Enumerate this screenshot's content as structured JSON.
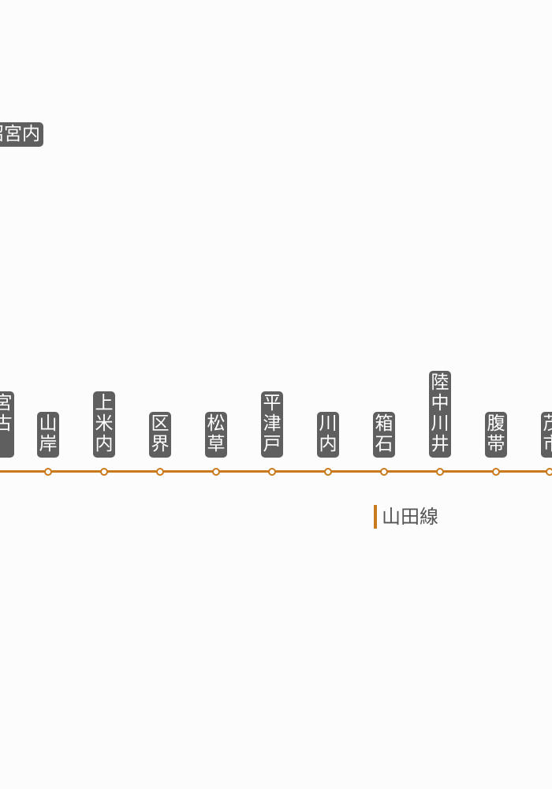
{
  "top_label": "沼宮内",
  "stations": [
    "宮古",
    "山岸",
    "上米内",
    "区界",
    "松草",
    "平津戸",
    "川内",
    "箱石",
    "陸中川井",
    "腹帯",
    "茂市"
  ],
  "branch_label": "山田線",
  "colors": {
    "line": "#c97a1c",
    "label_bg": "#5f5f5f",
    "label_text": "#ffffff",
    "background": "#fcfcfc"
  }
}
